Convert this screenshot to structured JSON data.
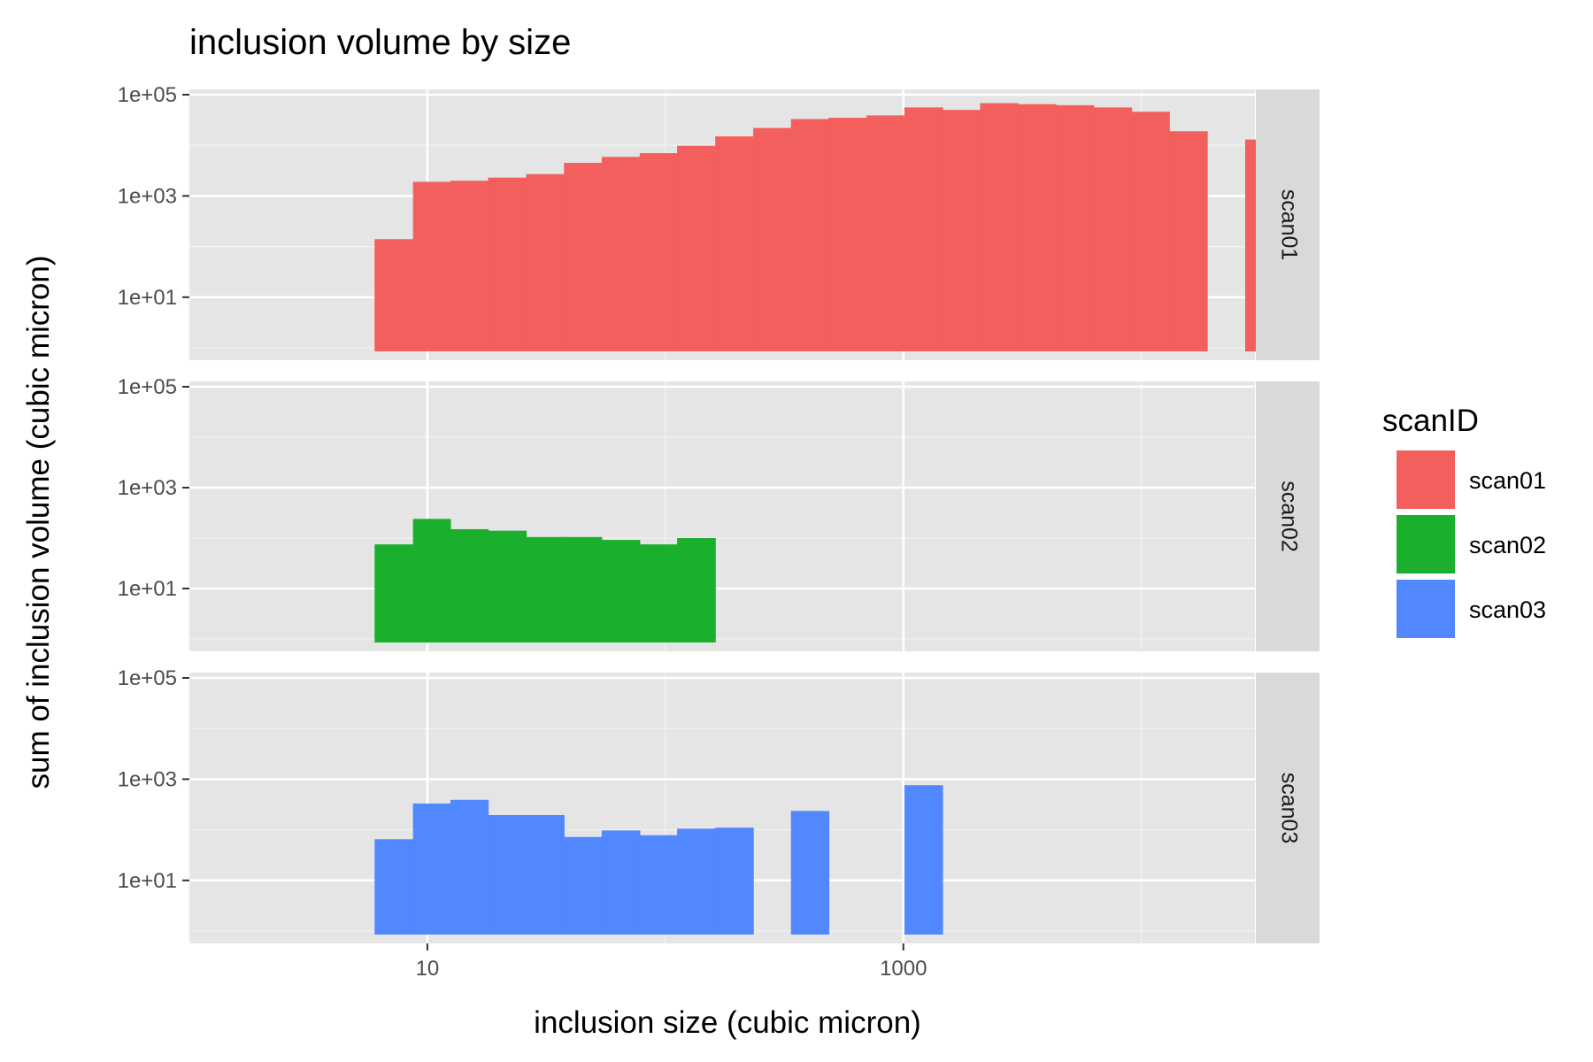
{
  "chart_data": {
    "type": "bar",
    "title": "inclusion volume by size",
    "xlabel": "inclusion size (cubic micron)",
    "ylabel": "sum of inclusion volume (cubic micron)",
    "x_scale": "log10",
    "y_scale": "log10",
    "xlim": [
      1,
      30000
    ],
    "ylim": [
      1,
      100000
    ],
    "x_ticks": [
      10,
      1000
    ],
    "x_tick_labels": [
      "10",
      "1000"
    ],
    "y_ticks": [
      10,
      1000,
      100000
    ],
    "y_tick_labels": [
      "1e+01",
      "1e+03",
      "1e+05"
    ],
    "grid": true,
    "legend": {
      "title": "scanID",
      "position": "right"
    },
    "facets": [
      "scan01",
      "scan02",
      "scan03"
    ],
    "series": [
      {
        "name": "scan01",
        "color": "#f25f5c",
        "bins": [
          {
            "x0": 6.0,
            "x1": 8.7,
            "value": 140
          },
          {
            "x0": 8.7,
            "x1": 12.5,
            "value": 1900
          },
          {
            "x0": 12.5,
            "x1": 18.0,
            "value": 2000
          },
          {
            "x0": 18.0,
            "x1": 26.0,
            "value": 2300
          },
          {
            "x0": 26.0,
            "x1": 37.5,
            "value": 2700
          },
          {
            "x0": 37.5,
            "x1": 54.0,
            "value": 4500
          },
          {
            "x0": 54.0,
            "x1": 78.0,
            "value": 5900
          },
          {
            "x0": 78.0,
            "x1": 112.0,
            "value": 7000
          },
          {
            "x0": 112.0,
            "x1": 162.0,
            "value": 9800
          },
          {
            "x0": 162.0,
            "x1": 234.0,
            "value": 15000
          },
          {
            "x0": 234.0,
            "x1": 337.0,
            "value": 22000
          },
          {
            "x0": 337.0,
            "x1": 486.0,
            "value": 33000
          },
          {
            "x0": 486.0,
            "x1": 700.0,
            "value": 35000
          },
          {
            "x0": 700.0,
            "x1": 1010.0,
            "value": 39000
          },
          {
            "x0": 1010.0,
            "x1": 1460.0,
            "value": 56000
          },
          {
            "x0": 1460.0,
            "x1": 2100.0,
            "value": 50000
          },
          {
            "x0": 2100.0,
            "x1": 3030.0,
            "value": 68000
          },
          {
            "x0": 3030.0,
            "x1": 4370.0,
            "value": 65000
          },
          {
            "x0": 4370.0,
            "x1": 6300.0,
            "value": 62000
          },
          {
            "x0": 6300.0,
            "x1": 9100.0,
            "value": 56000
          },
          {
            "x0": 9100.0,
            "x1": 13100.0,
            "value": 46000
          },
          {
            "x0": 13100.0,
            "x1": 18900.0,
            "value": 19000
          },
          {
            "x0": 27300.0,
            "x1": 39400.0,
            "value": 13000
          }
        ]
      },
      {
        "name": "scan02",
        "color": "#1ab02e",
        "bins": [
          {
            "x0": 6.0,
            "x1": 8.7,
            "value": 75
          },
          {
            "x0": 8.7,
            "x1": 12.5,
            "value": 240
          },
          {
            "x0": 12.5,
            "x1": 18.0,
            "value": 150
          },
          {
            "x0": 18.0,
            "x1": 26.0,
            "value": 140
          },
          {
            "x0": 26.0,
            "x1": 37.5,
            "value": 105
          },
          {
            "x0": 37.5,
            "x1": 54.0,
            "value": 105
          },
          {
            "x0": 54.0,
            "x1": 78.0,
            "value": 92
          },
          {
            "x0": 78.0,
            "x1": 112.0,
            "value": 75
          },
          {
            "x0": 112.0,
            "x1": 162.0,
            "value": 100
          }
        ]
      },
      {
        "name": "scan03",
        "color": "#5187ff",
        "bins": [
          {
            "x0": 6.0,
            "x1": 8.7,
            "value": 65
          },
          {
            "x0": 8.7,
            "x1": 12.5,
            "value": 330
          },
          {
            "x0": 12.5,
            "x1": 18.0,
            "value": 390
          },
          {
            "x0": 18.0,
            "x1": 26.0,
            "value": 195
          },
          {
            "x0": 26.0,
            "x1": 37.5,
            "value": 195
          },
          {
            "x0": 37.5,
            "x1": 54.0,
            "value": 72
          },
          {
            "x0": 54.0,
            "x1": 78.0,
            "value": 97
          },
          {
            "x0": 78.0,
            "x1": 112.0,
            "value": 78
          },
          {
            "x0": 112.0,
            "x1": 162.0,
            "value": 105
          },
          {
            "x0": 162.0,
            "x1": 234.0,
            "value": 110
          },
          {
            "x0": 337.0,
            "x1": 486.0,
            "value": 235
          },
          {
            "x0": 1010.0,
            "x1": 1460.0,
            "value": 760
          }
        ]
      }
    ]
  }
}
